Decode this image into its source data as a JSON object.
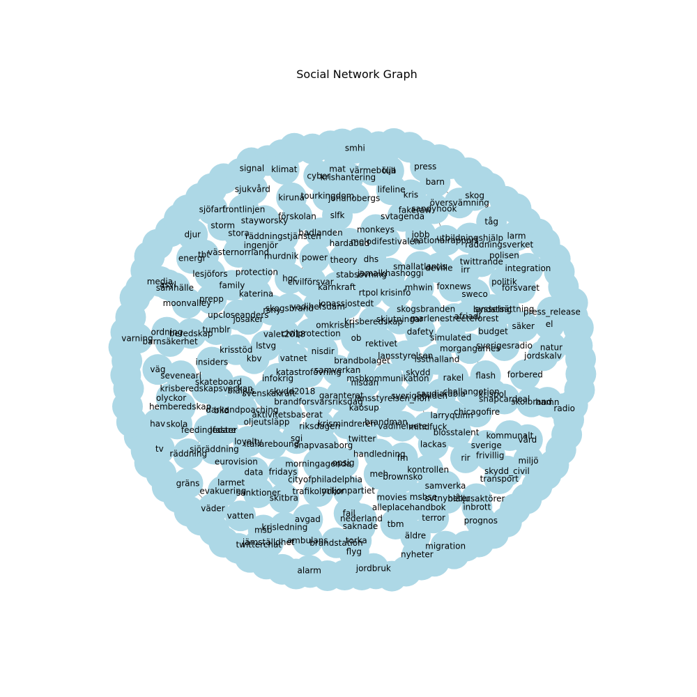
{
  "chart_data": {
    "type": "network",
    "title": "Social Network Graph",
    "node_color": "#add8e6",
    "edge_color": "#808080",
    "label_color": "#000000",
    "background": "#ffffff",
    "edge_pattern": "dense short edges between neighbouring nodes (many visible edges overlapping into hatched patches)",
    "nodes": [
      "brandbolaget",
      "samverkan",
      "ob",
      "nisdan",
      "nisdir",
      "rektivet",
      "garanterat",
      "omkrisen",
      "msbkommunikation",
      "katastrofövning",
      "krisberedskap",
      "kaosup",
      "civilprotection",
      "lansstyrelsen",
      "brandforsvarsriksdag",
      "jonassjostedt",
      "lansstyrelsen_norr",
      "vatnet",
      "skjutningar",
      "krismindreren",
      "vadihefsdam",
      "skydd",
      "skydd2018",
      "rtpol",
      "brandman",
      "valet2018",
      "dafety",
      "riksdagen",
      "kärnkraft",
      "sverigebilden",
      "infokrig",
      "krisinfo",
      "twitter",
      "skogsbrand",
      "lssthalland",
      "aktivitetsbaserat",
      "stabsövning",
      "vadihelvete",
      "lstvg",
      "skogsbranden",
      "snapvasaborg",
      "civilförsvar",
      "saudiarabia",
      "svenskakraft",
      "jamalkhashoggi",
      "handledning",
      "rsny",
      "simulated",
      "sgi",
      "theory",
      "mindfuck",
      "kbv",
      "mhwin",
      "opsig",
      "hgc",
      "rakel",
      "oljeutsläpp",
      "dhs",
      "fm",
      "josaker",
      "marlenestreeteforest",
      "morningagenda",
      "power",
      "larryquinn",
      "blåljus",
      "smallatlantis",
      "meh",
      "katerina",
      "morgangames",
      "italiarebound",
      "hardabud",
      "lackas",
      "krisstöd",
      "foxnews",
      "cityofphiladelphia",
      "murdnik",
      "challangetion",
      "darkandpoaching",
      "melodifestivalen",
      "brownsko",
      "upcloseanders",
      "afriadl",
      "fridays",
      "badlanden",
      "blosstalent",
      "skateboard",
      "deville",
      "miljonpartiet",
      "protection",
      "flash",
      "loyalty",
      "monkeys",
      "kontrollen",
      "tumblr",
      "sweco",
      "trafikolyckor",
      "räddningstjänsten",
      "chicagofire",
      "bild",
      "jobb",
      "movies",
      "family",
      "budget",
      "data",
      "slfk",
      "rir",
      "insiders",
      "irr",
      "fail",
      "ingenjör",
      "krispol",
      "ledare",
      "svtagenda",
      "msbse",
      "prepp",
      "landsting",
      "skitbra",
      "förskolan",
      "sverige",
      "krisberedskapsveckan",
      "nationalrapport",
      "nederland",
      "västernorrland",
      "sverigesradio",
      "eurovision",
      "johanobergs",
      "samverka",
      "beredskap",
      "twittrande",
      "avgad",
      "stayworsky",
      "snapcardeal",
      "feedingfaster",
      "fakeraw",
      "alleplacehandbok",
      "lesjöfors",
      "sysselsättning",
      "sanktioner",
      "tourkingdom",
      "frivillig",
      "sevenearl",
      "utbildningshjälp",
      "saknade",
      "stora",
      "forbered",
      "sjöräddning",
      "lifeline",
      "svtnyheter",
      "moonvalley",
      "politik",
      "krisledning",
      "kiruna",
      "kommunalt",
      "hemberedskap",
      "sandyhook",
      "tbm",
      "tbt",
      "säker",
      "larmet",
      "krishantering",
      "blåljusaktörer",
      "barnsäkerhet",
      "räddningsverket",
      "brandstation",
      "frontlinjen",
      "skolbrand",
      "räddning",
      "kris",
      "terror",
      "samhälle",
      "försvaret",
      "msb",
      "cyber",
      "skydd_civil",
      "olyckor",
      "översvämning",
      "torka",
      "storm",
      "jordskalv",
      "evakuering",
      "värmebölja",
      "inbrott",
      "ordning",
      "polisen",
      "ambulans",
      "sjukvård",
      "vård",
      "skola",
      "barn",
      "äldre",
      "energi",
      "el",
      "vatten",
      "mat",
      "transport",
      "väg",
      "tåg",
      "flyg",
      "sjöfart",
      "hamn",
      "gräns",
      "tull",
      "migration",
      "asyl",
      "integration",
      "jämställdhet",
      "klimat",
      "miljö",
      "hav",
      "skog",
      "jordbruk",
      "djur",
      "natur",
      "väder",
      "smhi",
      "prognos",
      "varning",
      "larm",
      "alarm",
      "signal",
      "radio",
      "tv",
      "press",
      "nyheter",
      "media",
      "press_release",
      "twitterchat"
    ]
  }
}
